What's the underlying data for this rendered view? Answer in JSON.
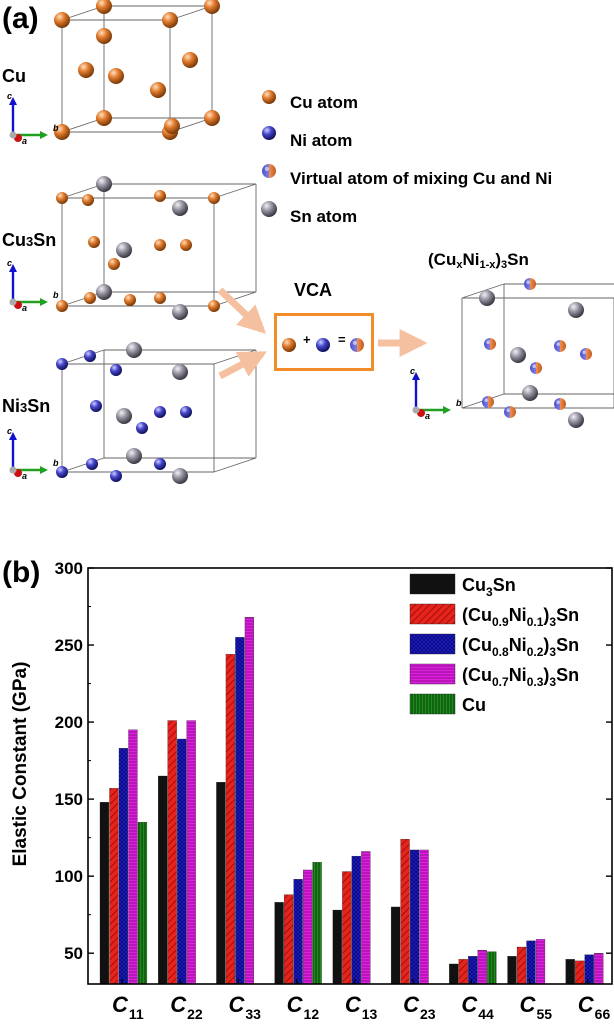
{
  "panel_a": {
    "label": "(a)",
    "structures": {
      "cu": "Cu",
      "cu3sn_base": "Cu",
      "cu3sn_sub": "3",
      "cu3sn_tail": "Sn",
      "ni3sn_base": "Ni",
      "ni3sn_sub": "3",
      "ni3sn_tail": "Sn",
      "alloy_pre": "(Cu",
      "alloy_x": "x",
      "alloy_ni": "Ni",
      "alloy_sub": "1-x",
      "alloy_close": ")",
      "alloy_3": "3",
      "alloy_sn": "Sn"
    },
    "axes": {
      "a": "a",
      "b": "b",
      "c": "c"
    },
    "legend": [
      {
        "label": "Cu atom",
        "color": "#e07a2c"
      },
      {
        "label": "Ni atom",
        "color": "#4040c8"
      },
      {
        "label": "Virtual atom of mixing Cu and Ni",
        "color": "#d97a4e"
      },
      {
        "label": "Sn atom",
        "color": "#8a8694"
      }
    ],
    "vca": {
      "title": "VCA",
      "plus": "+",
      "equals": "="
    }
  },
  "panel_b": {
    "label": "(b)"
  },
  "chart_data": {
    "type": "bar",
    "ylabel": "Elastic Constant (GPa)",
    "xlabel": "",
    "ylim": [
      30,
      300
    ],
    "yticks": [
      "50",
      "100",
      "150",
      "200",
      "250",
      "300"
    ],
    "categories": [
      {
        "letter": "C",
        "sub": "11"
      },
      {
        "letter": "C",
        "sub": "22"
      },
      {
        "letter": "C",
        "sub": "33"
      },
      {
        "letter": "C",
        "sub": "12"
      },
      {
        "letter": "C",
        "sub": "13"
      },
      {
        "letter": "C",
        "sub": "23"
      },
      {
        "letter": "C",
        "sub": "44"
      },
      {
        "letter": "C",
        "sub": "55"
      },
      {
        "letter": "C",
        "sub": "66"
      }
    ],
    "series": [
      {
        "name": "Cu3Sn",
        "label_parts": [
          "Cu",
          "3",
          "Sn"
        ],
        "color": "#111111",
        "pattern": "solid",
        "values": [
          148,
          165,
          161,
          83,
          78,
          80,
          43,
          48,
          46
        ]
      },
      {
        "name": "(Cu0.9Ni0.1)3Sn",
        "label_parts": [
          "(Cu",
          "0.9",
          "Ni",
          "0.1",
          ")",
          "3",
          "Sn"
        ],
        "color": "#e8231c",
        "pattern": "diag",
        "values": [
          157,
          201,
          244,
          88,
          103,
          124,
          46,
          54,
          45
        ]
      },
      {
        "name": "(Cu0.8Ni0.2)3Sn",
        "label_parts": [
          "(Cu",
          "0.8",
          "Ni",
          "0.2",
          ")",
          "3",
          "Sn"
        ],
        "color": "#1c1ce0",
        "pattern": "cross",
        "values": [
          183,
          189,
          255,
          98,
          113,
          117,
          48,
          58,
          49
        ]
      },
      {
        "name": "(Cu0.7Ni0.3)3Sn",
        "label_parts": [
          "(Cu",
          "0.7",
          "Ni",
          "0.3",
          ")",
          "3",
          "Sn"
        ],
        "color": "#e020e0",
        "pattern": "hlines",
        "values": [
          195,
          201,
          268,
          104,
          116,
          117,
          52,
          59,
          50
        ]
      },
      {
        "name": "Cu",
        "label_parts": [
          "Cu"
        ],
        "color": "#1c8c1c",
        "pattern": "vlines",
        "values": [
          135,
          null,
          null,
          109,
          null,
          null,
          51,
          null,
          null
        ]
      }
    ],
    "legend_position": "top-right",
    "grid": false
  }
}
